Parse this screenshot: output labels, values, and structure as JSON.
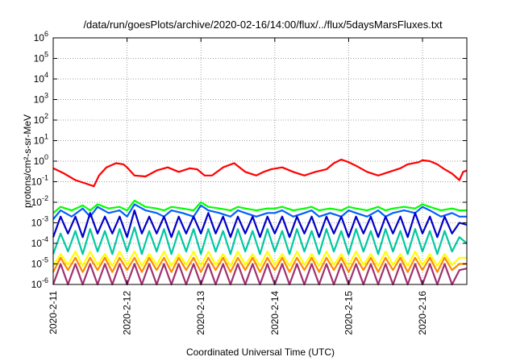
{
  "chart_data": {
    "type": "line",
    "title": "/data/run/goesPlots/archive/2020-02-16/14:00/flux/../flux/5daysMarsFluxes.txt",
    "xlabel": "Coordinated Universal Time (UTC)",
    "ylabel": "protons/cm²-s-sr-MeV",
    "yscale": "log",
    "ylim": [
      1e-06,
      1000000.0
    ],
    "xlim": [
      0,
      5.6
    ],
    "grid": true,
    "legend": "none",
    "x_ticks": [
      {
        "x": 0,
        "label": "2020-2-11"
      },
      {
        "x": 1,
        "label": "2020-2-12"
      },
      {
        "x": 2,
        "label": "2020-2-13"
      },
      {
        "x": 3,
        "label": "2020-2-14"
      },
      {
        "x": 4,
        "label": "2020-2-15"
      },
      {
        "x": 5,
        "label": "2020-2-16"
      }
    ],
    "y_ticks": [
      {
        "exp": -6,
        "label": "10",
        "sup": "-6"
      },
      {
        "exp": -5,
        "label": "10",
        "sup": "-5"
      },
      {
        "exp": -4,
        "label": "10",
        "sup": "-4"
      },
      {
        "exp": -3,
        "label": "10",
        "sup": "-3"
      },
      {
        "exp": -2,
        "label": "10",
        "sup": "-2"
      },
      {
        "exp": -1,
        "label": "10",
        "sup": "-1"
      },
      {
        "exp": 0,
        "label": "10",
        "sup": "0"
      },
      {
        "exp": 1,
        "label": "10",
        "sup": "1"
      },
      {
        "exp": 2,
        "label": "10",
        "sup": "2"
      },
      {
        "exp": 3,
        "label": "10",
        "sup": "3"
      },
      {
        "exp": 4,
        "label": "10",
        "sup": "4"
      },
      {
        "exp": 5,
        "label": "10",
        "sup": "5"
      },
      {
        "exp": 6,
        "label": "10",
        "sup": "6"
      }
    ],
    "series": [
      {
        "color": "#ff0000",
        "x": [
          0,
          0.15,
          0.3,
          0.45,
          0.55,
          0.62,
          0.72,
          0.85,
          0.95,
          1.0,
          1.1,
          1.25,
          1.4,
          1.55,
          1.7,
          1.85,
          1.95,
          2.05,
          2.15,
          2.3,
          2.45,
          2.6,
          2.75,
          2.85,
          2.95,
          3.1,
          3.25,
          3.4,
          3.55,
          3.7,
          3.8,
          3.9,
          4.0,
          4.1,
          4.25,
          4.4,
          4.55,
          4.7,
          4.8,
          4.95,
          5.0,
          5.1,
          5.2,
          5.3,
          5.4,
          5.5,
          5.55,
          5.6
        ],
        "y": [
          0.45,
          0.25,
          0.12,
          0.08,
          0.06,
          0.2,
          0.5,
          0.8,
          0.7,
          0.5,
          0.2,
          0.18,
          0.35,
          0.5,
          0.3,
          0.45,
          0.4,
          0.2,
          0.2,
          0.5,
          0.8,
          0.3,
          0.2,
          0.3,
          0.4,
          0.5,
          0.3,
          0.2,
          0.3,
          0.4,
          0.8,
          1.2,
          0.9,
          0.6,
          0.3,
          0.2,
          0.3,
          0.45,
          0.7,
          0.9,
          1.1,
          1.0,
          0.7,
          0.4,
          0.25,
          0.12,
          0.3,
          0.35
        ]
      },
      {
        "color": "#00ff00",
        "x": [
          0,
          0.1,
          0.25,
          0.4,
          0.5,
          0.6,
          0.75,
          0.9,
          1.0,
          1.1,
          1.25,
          1.4,
          1.5,
          1.6,
          1.75,
          1.9,
          2.0,
          2.1,
          2.25,
          2.4,
          2.5,
          2.6,
          2.75,
          2.9,
          3.0,
          3.1,
          3.25,
          3.4,
          3.5,
          3.6,
          3.75,
          3.9,
          4.0,
          4.1,
          4.25,
          4.4,
          4.5,
          4.6,
          4.75,
          4.9,
          5.0,
          5.1,
          5.25,
          5.4,
          5.5,
          5.6
        ],
        "y": [
          0.003,
          0.006,
          0.004,
          0.007,
          0.004,
          0.008,
          0.005,
          0.006,
          0.004,
          0.012,
          0.006,
          0.005,
          0.004,
          0.006,
          0.005,
          0.004,
          0.01,
          0.006,
          0.005,
          0.004,
          0.006,
          0.005,
          0.004,
          0.005,
          0.005,
          0.006,
          0.004,
          0.005,
          0.006,
          0.004,
          0.005,
          0.004,
          0.006,
          0.005,
          0.004,
          0.006,
          0.004,
          0.005,
          0.006,
          0.005,
          0.008,
          0.006,
          0.004,
          0.005,
          0.004,
          0.004
        ]
      },
      {
        "color": "#0060ff",
        "x": [
          0,
          0.1,
          0.25,
          0.4,
          0.5,
          0.6,
          0.75,
          0.9,
          1.0,
          1.1,
          1.25,
          1.4,
          1.5,
          1.6,
          1.75,
          1.9,
          2.0,
          2.1,
          2.25,
          2.4,
          2.5,
          2.6,
          2.75,
          2.9,
          3.0,
          3.1,
          3.25,
          3.4,
          3.5,
          3.6,
          3.75,
          3.9,
          4.0,
          4.1,
          4.25,
          4.4,
          4.5,
          4.6,
          4.75,
          4.9,
          5.0,
          5.1,
          5.25,
          5.4,
          5.5,
          5.6
        ],
        "y": [
          0.0015,
          0.004,
          0.002,
          0.005,
          0.002,
          0.006,
          0.003,
          0.004,
          0.002,
          0.008,
          0.004,
          0.003,
          0.002,
          0.004,
          0.003,
          0.002,
          0.007,
          0.004,
          0.003,
          0.002,
          0.004,
          0.003,
          0.002,
          0.003,
          0.003,
          0.004,
          0.002,
          0.003,
          0.004,
          0.002,
          0.003,
          0.002,
          0.004,
          0.003,
          0.002,
          0.004,
          0.002,
          0.003,
          0.004,
          0.003,
          0.006,
          0.004,
          0.002,
          0.003,
          0.002,
          0.002
        ]
      },
      {
        "color": "#0000c8",
        "x": [
          0,
          0.1,
          0.2,
          0.3,
          0.4,
          0.5,
          0.6,
          0.7,
          0.8,
          0.9,
          1.0,
          1.1,
          1.2,
          1.3,
          1.4,
          1.5,
          1.6,
          1.7,
          1.8,
          1.9,
          2.0,
          2.1,
          2.2,
          2.3,
          2.4,
          2.5,
          2.6,
          2.7,
          2.8,
          2.9,
          3.0,
          3.1,
          3.2,
          3.3,
          3.4,
          3.5,
          3.6,
          3.7,
          3.8,
          3.9,
          4.0,
          4.1,
          4.2,
          4.3,
          4.4,
          4.5,
          4.6,
          4.7,
          4.8,
          4.9,
          5.0,
          5.1,
          5.2,
          5.3,
          5.4,
          5.5,
          5.6
        ],
        "y": [
          0.0002,
          0.002,
          0.0003,
          0.002,
          0.0002,
          0.003,
          0.0003,
          0.002,
          0.0003,
          0.002,
          0.0002,
          0.004,
          0.0003,
          0.002,
          0.0003,
          0.002,
          0.0002,
          0.002,
          0.0003,
          0.002,
          0.0003,
          0.003,
          0.0003,
          0.002,
          0.0002,
          0.002,
          0.0003,
          0.002,
          0.0002,
          0.002,
          0.0003,
          0.002,
          0.0002,
          0.002,
          0.0003,
          0.002,
          0.0002,
          0.002,
          0.0003,
          0.002,
          0.0002,
          0.002,
          0.0003,
          0.002,
          0.0002,
          0.002,
          0.0003,
          0.002,
          0.0002,
          0.003,
          0.0003,
          0.002,
          0.0002,
          0.002,
          0.0003,
          0.001,
          0.0008
        ]
      },
      {
        "color": "#00c8a0",
        "x": [
          0,
          0.1,
          0.2,
          0.3,
          0.4,
          0.5,
          0.6,
          0.7,
          0.8,
          0.9,
          1.0,
          1.1,
          1.2,
          1.3,
          1.4,
          1.5,
          1.6,
          1.7,
          1.8,
          1.9,
          2.0,
          2.1,
          2.2,
          2.3,
          2.4,
          2.5,
          2.6,
          2.7,
          2.8,
          2.9,
          3.0,
          3.1,
          3.2,
          3.3,
          3.4,
          3.5,
          3.6,
          3.7,
          3.8,
          3.9,
          4.0,
          4.1,
          4.2,
          4.3,
          4.4,
          4.5,
          4.6,
          4.7,
          4.8,
          4.9,
          5.0,
          5.1,
          5.2,
          5.3,
          5.4,
          5.5,
          5.6
        ],
        "y": [
          3e-05,
          0.0003,
          4e-05,
          0.0004,
          3e-05,
          0.0005,
          4e-05,
          0.0004,
          3e-05,
          0.0005,
          4e-05,
          0.0006,
          3e-05,
          0.0004,
          4e-05,
          0.0005,
          3e-05,
          0.0004,
          4e-05,
          0.0005,
          3e-05,
          0.0005,
          4e-05,
          0.0004,
          3e-05,
          0.0005,
          4e-05,
          0.0004,
          3e-05,
          0.0005,
          4e-05,
          0.0004,
          3e-05,
          0.0005,
          4e-05,
          0.0004,
          3e-05,
          0.0005,
          4e-05,
          0.0004,
          3e-05,
          0.0005,
          4e-05,
          0.0004,
          3e-05,
          0.0005,
          4e-05,
          0.0004,
          3e-05,
          0.0005,
          4e-05,
          0.0004,
          3e-05,
          0.0004,
          4e-05,
          0.0002,
          0.0001
        ]
      },
      {
        "color": "#ffff00",
        "x": [
          0,
          0.1,
          0.2,
          0.3,
          0.4,
          0.5,
          0.6,
          0.7,
          0.8,
          0.9,
          1.0,
          1.1,
          1.2,
          1.3,
          1.4,
          1.5,
          1.6,
          1.7,
          1.8,
          1.9,
          2.0,
          2.1,
          2.2,
          2.3,
          2.4,
          2.5,
          2.6,
          2.7,
          2.8,
          2.9,
          3.0,
          3.1,
          3.2,
          3.3,
          3.4,
          3.5,
          3.6,
          3.7,
          3.8,
          3.9,
          4.0,
          4.1,
          4.2,
          4.3,
          4.4,
          4.5,
          4.6,
          4.7,
          4.8,
          4.9,
          5.0,
          5.1,
          5.2,
          5.3,
          5.4,
          5.5,
          5.6
        ],
        "y": [
          8e-06,
          3e-05,
          9e-06,
          4e-05,
          8e-06,
          4e-05,
          9e-06,
          3e-05,
          8e-06,
          4e-05,
          9e-06,
          4e-05,
          8e-06,
          3e-05,
          9e-06,
          4e-05,
          8e-06,
          3e-05,
          9e-06,
          4e-05,
          8e-06,
          4e-05,
          9e-06,
          3e-05,
          8e-06,
          4e-05,
          9e-06,
          3e-05,
          8e-06,
          4e-05,
          9e-06,
          3e-05,
          8e-06,
          4e-05,
          9e-06,
          3e-05,
          8e-06,
          4e-05,
          9e-06,
          3e-05,
          8e-06,
          4e-05,
          9e-06,
          3e-05,
          8e-06,
          4e-05,
          9e-06,
          3e-05,
          8e-06,
          4e-05,
          9e-06,
          3e-05,
          8e-06,
          3e-05,
          9e-06,
          2e-05,
          2e-05
        ]
      },
      {
        "color": "#ff8800",
        "x": [
          0,
          0.1,
          0.2,
          0.3,
          0.4,
          0.5,
          0.6,
          0.7,
          0.8,
          0.9,
          1.0,
          1.1,
          1.2,
          1.3,
          1.4,
          1.5,
          1.6,
          1.7,
          1.8,
          1.9,
          2.0,
          2.1,
          2.2,
          2.3,
          2.4,
          2.5,
          2.6,
          2.7,
          2.8,
          2.9,
          3.0,
          3.1,
          3.2,
          3.3,
          3.4,
          3.5,
          3.6,
          3.7,
          3.8,
          3.9,
          4.0,
          4.1,
          4.2,
          4.3,
          4.4,
          4.5,
          4.6,
          4.7,
          4.8,
          4.9,
          5.0,
          5.1,
          5.2,
          5.3,
          5.4,
          5.5,
          5.6
        ],
        "y": [
          4e-06,
          2e-05,
          5e-06,
          2e-05,
          4e-06,
          2e-05,
          5e-06,
          2e-05,
          4e-06,
          2e-05,
          5e-06,
          2e-05,
          4e-06,
          2e-05,
          5e-06,
          2e-05,
          4e-06,
          2e-05,
          5e-06,
          2e-05,
          4e-06,
          2e-05,
          5e-06,
          2e-05,
          4e-06,
          2e-05,
          5e-06,
          2e-05,
          4e-06,
          2e-05,
          5e-06,
          2e-05,
          4e-06,
          2e-05,
          5e-06,
          2e-05,
          4e-06,
          2e-05,
          5e-06,
          2e-05,
          4e-06,
          2e-05,
          5e-06,
          2e-05,
          4e-06,
          2e-05,
          5e-06,
          2e-05,
          4e-06,
          2e-05,
          5e-06,
          2e-05,
          4e-06,
          2e-05,
          5e-06,
          1e-05,
          1e-05
        ]
      },
      {
        "color": "#a03070",
        "x": [
          0,
          0.1,
          0.2,
          0.3,
          0.4,
          0.5,
          0.6,
          0.7,
          0.8,
          0.9,
          1.0,
          1.1,
          1.2,
          1.3,
          1.4,
          1.5,
          1.6,
          1.7,
          1.8,
          1.9,
          2.0,
          2.1,
          2.2,
          2.3,
          2.4,
          2.5,
          2.6,
          2.7,
          2.8,
          2.9,
          3.0,
          3.1,
          3.2,
          3.3,
          3.4,
          3.5,
          3.6,
          3.7,
          3.8,
          3.9,
          4.0,
          4.1,
          4.2,
          4.3,
          4.4,
          4.5,
          4.6,
          4.7,
          4.8,
          4.9,
          5.0,
          5.1,
          5.2,
          5.3,
          5.4,
          5.5,
          5.6
        ],
        "y": [
          1e-06,
          1e-05,
          1e-06,
          1e-05,
          1e-06,
          1e-05,
          1e-06,
          1e-05,
          1e-06,
          1e-05,
          1e-06,
          1e-05,
          1e-06,
          1e-05,
          1e-06,
          1e-05,
          1e-06,
          1e-05,
          1e-06,
          1e-05,
          1e-06,
          1e-05,
          1e-06,
          1e-05,
          1e-06,
          1e-05,
          1e-06,
          1e-05,
          1e-06,
          1e-05,
          1e-06,
          1e-05,
          1e-06,
          1e-05,
          1e-06,
          1e-05,
          1e-06,
          1e-05,
          1e-06,
          1e-05,
          1e-06,
          1e-05,
          1e-06,
          1e-05,
          1e-06,
          1e-05,
          1e-06,
          1e-05,
          1e-06,
          1e-05,
          1e-06,
          1e-05,
          1e-06,
          1e-05,
          1e-06,
          5e-06,
          6e-06
        ]
      }
    ]
  }
}
